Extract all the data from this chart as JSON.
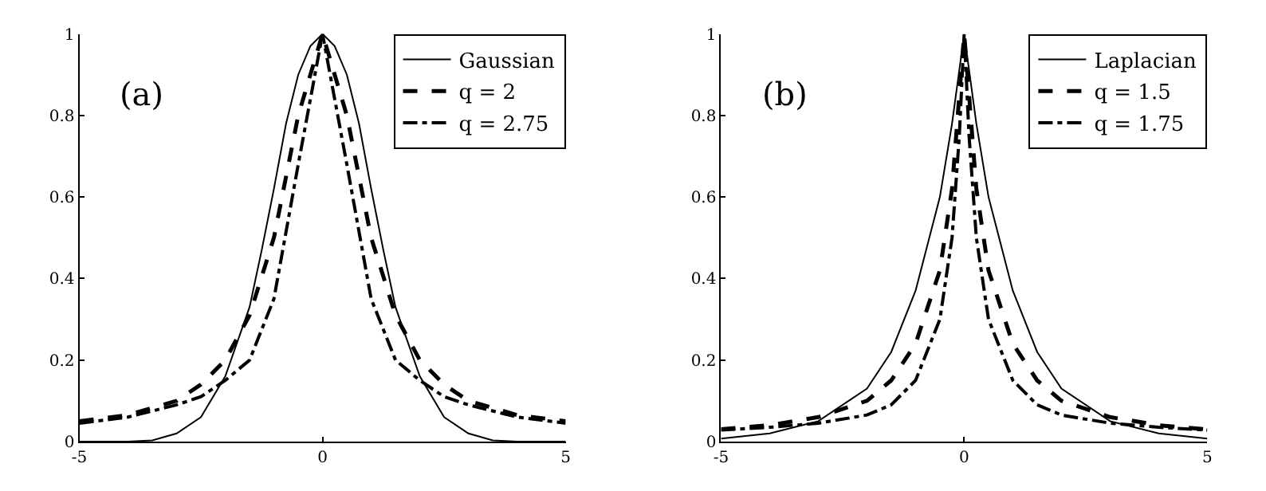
{
  "chart_data": [
    {
      "type": "line",
      "annotations": [
        "(a)"
      ],
      "xlim": [
        -5,
        5
      ],
      "xticks": [
        -5,
        0,
        5
      ],
      "ylim": [
        0,
        1
      ],
      "yticks": [
        0,
        0.2,
        0.4,
        0.6,
        0.8,
        1
      ],
      "legend": "top right",
      "marker": "none",
      "series": [
        {
          "name": "Gaussian",
          "color": "#000000",
          "line_style": "solid",
          "x": [
            -5,
            -4,
            -3.5,
            -3,
            -2.5,
            -2,
            -1.5,
            -1.25,
            -1,
            -0.75,
            -0.5,
            -0.25,
            0,
            0.25,
            0.5,
            0.75,
            1,
            1.25,
            1.5,
            2,
            2.5,
            3,
            3.5,
            4,
            5
          ],
          "values": [
            0,
            0,
            0.003,
            0.02,
            0.06,
            0.16,
            0.33,
            0.47,
            0.62,
            0.78,
            0.9,
            0.97,
            1,
            0.97,
            0.9,
            0.78,
            0.62,
            0.47,
            0.33,
            0.16,
            0.06,
            0.02,
            0.003,
            0,
            0
          ]
        },
        {
          "name": "q = 2",
          "color": "#000000",
          "line_style": "dashed",
          "x": [
            -5,
            -4,
            -3,
            -2.5,
            -2,
            -1.5,
            -1,
            -0.5,
            0,
            0.5,
            1,
            1.5,
            2,
            2.5,
            3,
            4,
            5
          ],
          "values": [
            0.05,
            0.065,
            0.1,
            0.14,
            0.2,
            0.31,
            0.5,
            0.8,
            1,
            0.8,
            0.5,
            0.31,
            0.2,
            0.14,
            0.1,
            0.065,
            0.05
          ]
        },
        {
          "name": "q = 2.75",
          "color": "#000000",
          "line_style": "dashdot",
          "x": [
            -5,
            -4,
            -3,
            -2.5,
            -2,
            -1.5,
            -1,
            -0.5,
            0,
            0.5,
            1,
            1.5,
            2,
            2.5,
            3,
            4,
            5
          ],
          "values": [
            0.045,
            0.06,
            0.09,
            0.11,
            0.15,
            0.2,
            0.35,
            0.68,
            1,
            0.68,
            0.35,
            0.2,
            0.15,
            0.11,
            0.09,
            0.06,
            0.045
          ]
        }
      ]
    },
    {
      "type": "line",
      "annotations": [
        "(b)"
      ],
      "xlim": [
        -5,
        5
      ],
      "xticks": [
        -5,
        0,
        5
      ],
      "ylim": [
        0,
        1
      ],
      "yticks": [
        0,
        0.2,
        0.4,
        0.6,
        0.8,
        1
      ],
      "legend": "top right",
      "marker": "none",
      "series": [
        {
          "name": "Laplacian",
          "color": "#000000",
          "line_style": "solid",
          "x": [
            -5,
            -4,
            -3,
            -2,
            -1.5,
            -1,
            -0.5,
            -0.25,
            0,
            0.25,
            0.5,
            1,
            1.5,
            2,
            3,
            4,
            5
          ],
          "values": [
            0.007,
            0.02,
            0.05,
            0.13,
            0.22,
            0.37,
            0.6,
            0.78,
            1,
            0.78,
            0.6,
            0.37,
            0.22,
            0.13,
            0.05,
            0.02,
            0.007
          ]
        },
        {
          "name": "q = 1.5",
          "color": "#000000",
          "line_style": "dashed",
          "x": [
            -5,
            -4,
            -3,
            -2,
            -1.5,
            -1,
            -0.5,
            -0.25,
            -0.1,
            0,
            0.1,
            0.25,
            0.5,
            1,
            1.5,
            2,
            3,
            4,
            5
          ],
          "values": [
            0.03,
            0.04,
            0.06,
            0.1,
            0.15,
            0.24,
            0.42,
            0.62,
            0.85,
            1,
            0.85,
            0.62,
            0.42,
            0.24,
            0.15,
            0.1,
            0.06,
            0.04,
            0.03
          ]
        },
        {
          "name": "q = 1.75",
          "color": "#000000",
          "line_style": "dashdot",
          "x": [
            -5,
            -4,
            -3,
            -2,
            -1.5,
            -1,
            -0.5,
            -0.25,
            -0.1,
            0,
            0.1,
            0.25,
            0.5,
            1,
            1.5,
            2,
            3,
            4,
            5
          ],
          "values": [
            0.028,
            0.035,
            0.045,
            0.065,
            0.09,
            0.15,
            0.3,
            0.5,
            0.75,
            1,
            0.75,
            0.5,
            0.3,
            0.15,
            0.09,
            0.065,
            0.045,
            0.035,
            0.028
          ]
        }
      ]
    }
  ]
}
